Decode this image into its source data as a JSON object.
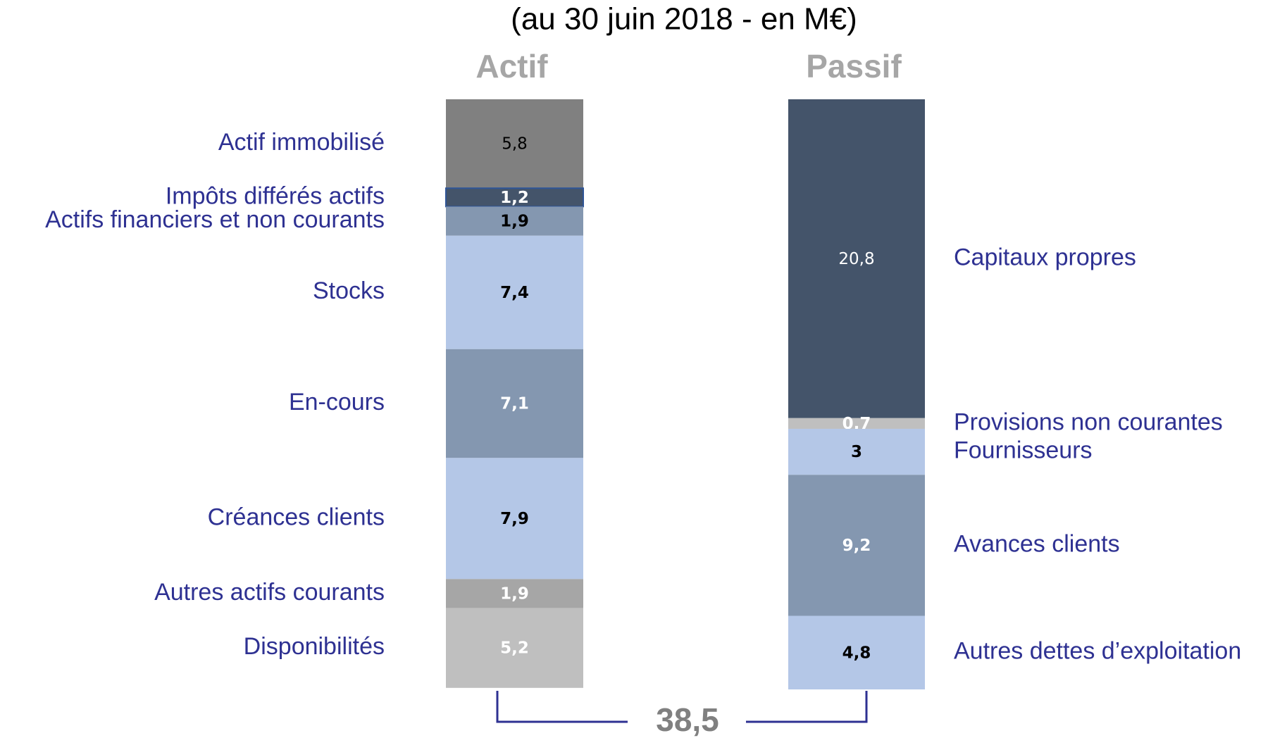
{
  "chart_data": {
    "type": "stacked-bar",
    "title": "(au 30 juin 2018 - en M€)",
    "categories": [
      "Actif",
      "Passif"
    ],
    "ylim": [
      0,
      38.5
    ],
    "series": [
      {
        "name": "Actif immobilisé",
        "color": "#808080",
        "label_color": "#000000",
        "bold": false,
        "values": [
          5.8,
          null
        ],
        "value_labels": [
          "5,8",
          null
        ]
      },
      {
        "name": "Impôts différés actifs",
        "color": "#44546a",
        "label_color": "#ffffff",
        "bold": true,
        "values": [
          1.2,
          null
        ],
        "value_labels": [
          "1,2",
          null
        ]
      },
      {
        "name": "Actifs financiers et non courants",
        "color": "#8497b0",
        "label_color": "#000000",
        "bold": true,
        "values": [
          1.9,
          null
        ],
        "value_labels": [
          "1,9",
          null
        ]
      },
      {
        "name": "Stocks",
        "color": "#b4c7e7",
        "label_color": "#000000",
        "bold": true,
        "values": [
          7.4,
          null
        ],
        "value_labels": [
          "7,4",
          null
        ]
      },
      {
        "name": "En-cours",
        "color": "#8497b0",
        "label_color": "#ffffff",
        "bold": true,
        "values": [
          7.1,
          null
        ],
        "value_labels": [
          "7,1",
          null
        ]
      },
      {
        "name": "Créances clients",
        "color": "#b4c7e7",
        "label_color": "#000000",
        "bold": true,
        "values": [
          7.9,
          null
        ],
        "value_labels": [
          "7,9",
          null
        ]
      },
      {
        "name": "Autres actifs courants",
        "color": "#a6a6a6",
        "label_color": "#ffffff",
        "bold": true,
        "values": [
          1.9,
          null
        ],
        "value_labels": [
          "1,9",
          null
        ]
      },
      {
        "name": "Disponibilités",
        "color": "#bfbfbf",
        "label_color": "#ffffff",
        "bold": true,
        "values": [
          5.2,
          null
        ],
        "value_labels": [
          "5,2",
          null
        ]
      },
      {
        "name": "Capitaux propres",
        "color": "#44546a",
        "label_color": "#ffffff",
        "bold": false,
        "values": [
          null,
          20.8
        ],
        "value_labels": [
          null,
          "20,8"
        ]
      },
      {
        "name": "Provisions non courantes",
        "color": "#bfbfbf",
        "label_color": "#ffffff",
        "bold": true,
        "values": [
          null,
          0.7
        ],
        "value_labels": [
          null,
          "0,7"
        ]
      },
      {
        "name": "Fournisseurs",
        "color": "#b4c7e7",
        "label_color": "#000000",
        "bold": true,
        "values": [
          null,
          3
        ],
        "value_labels": [
          null,
          "3"
        ]
      },
      {
        "name": "Avances clients",
        "color": "#8497b0",
        "label_color": "#ffffff",
        "bold": true,
        "values": [
          null,
          9.2
        ],
        "value_labels": [
          null,
          "9,2"
        ]
      },
      {
        "name": "Autres dettes d’exploitation",
        "color": "#b4c7e7",
        "label_color": "#000000",
        "bold": true,
        "values": [
          null,
          4.8
        ],
        "value_labels": [
          null,
          "4,8"
        ]
      }
    ],
    "total": {
      "value": 38.5,
      "label": "38,5"
    }
  }
}
